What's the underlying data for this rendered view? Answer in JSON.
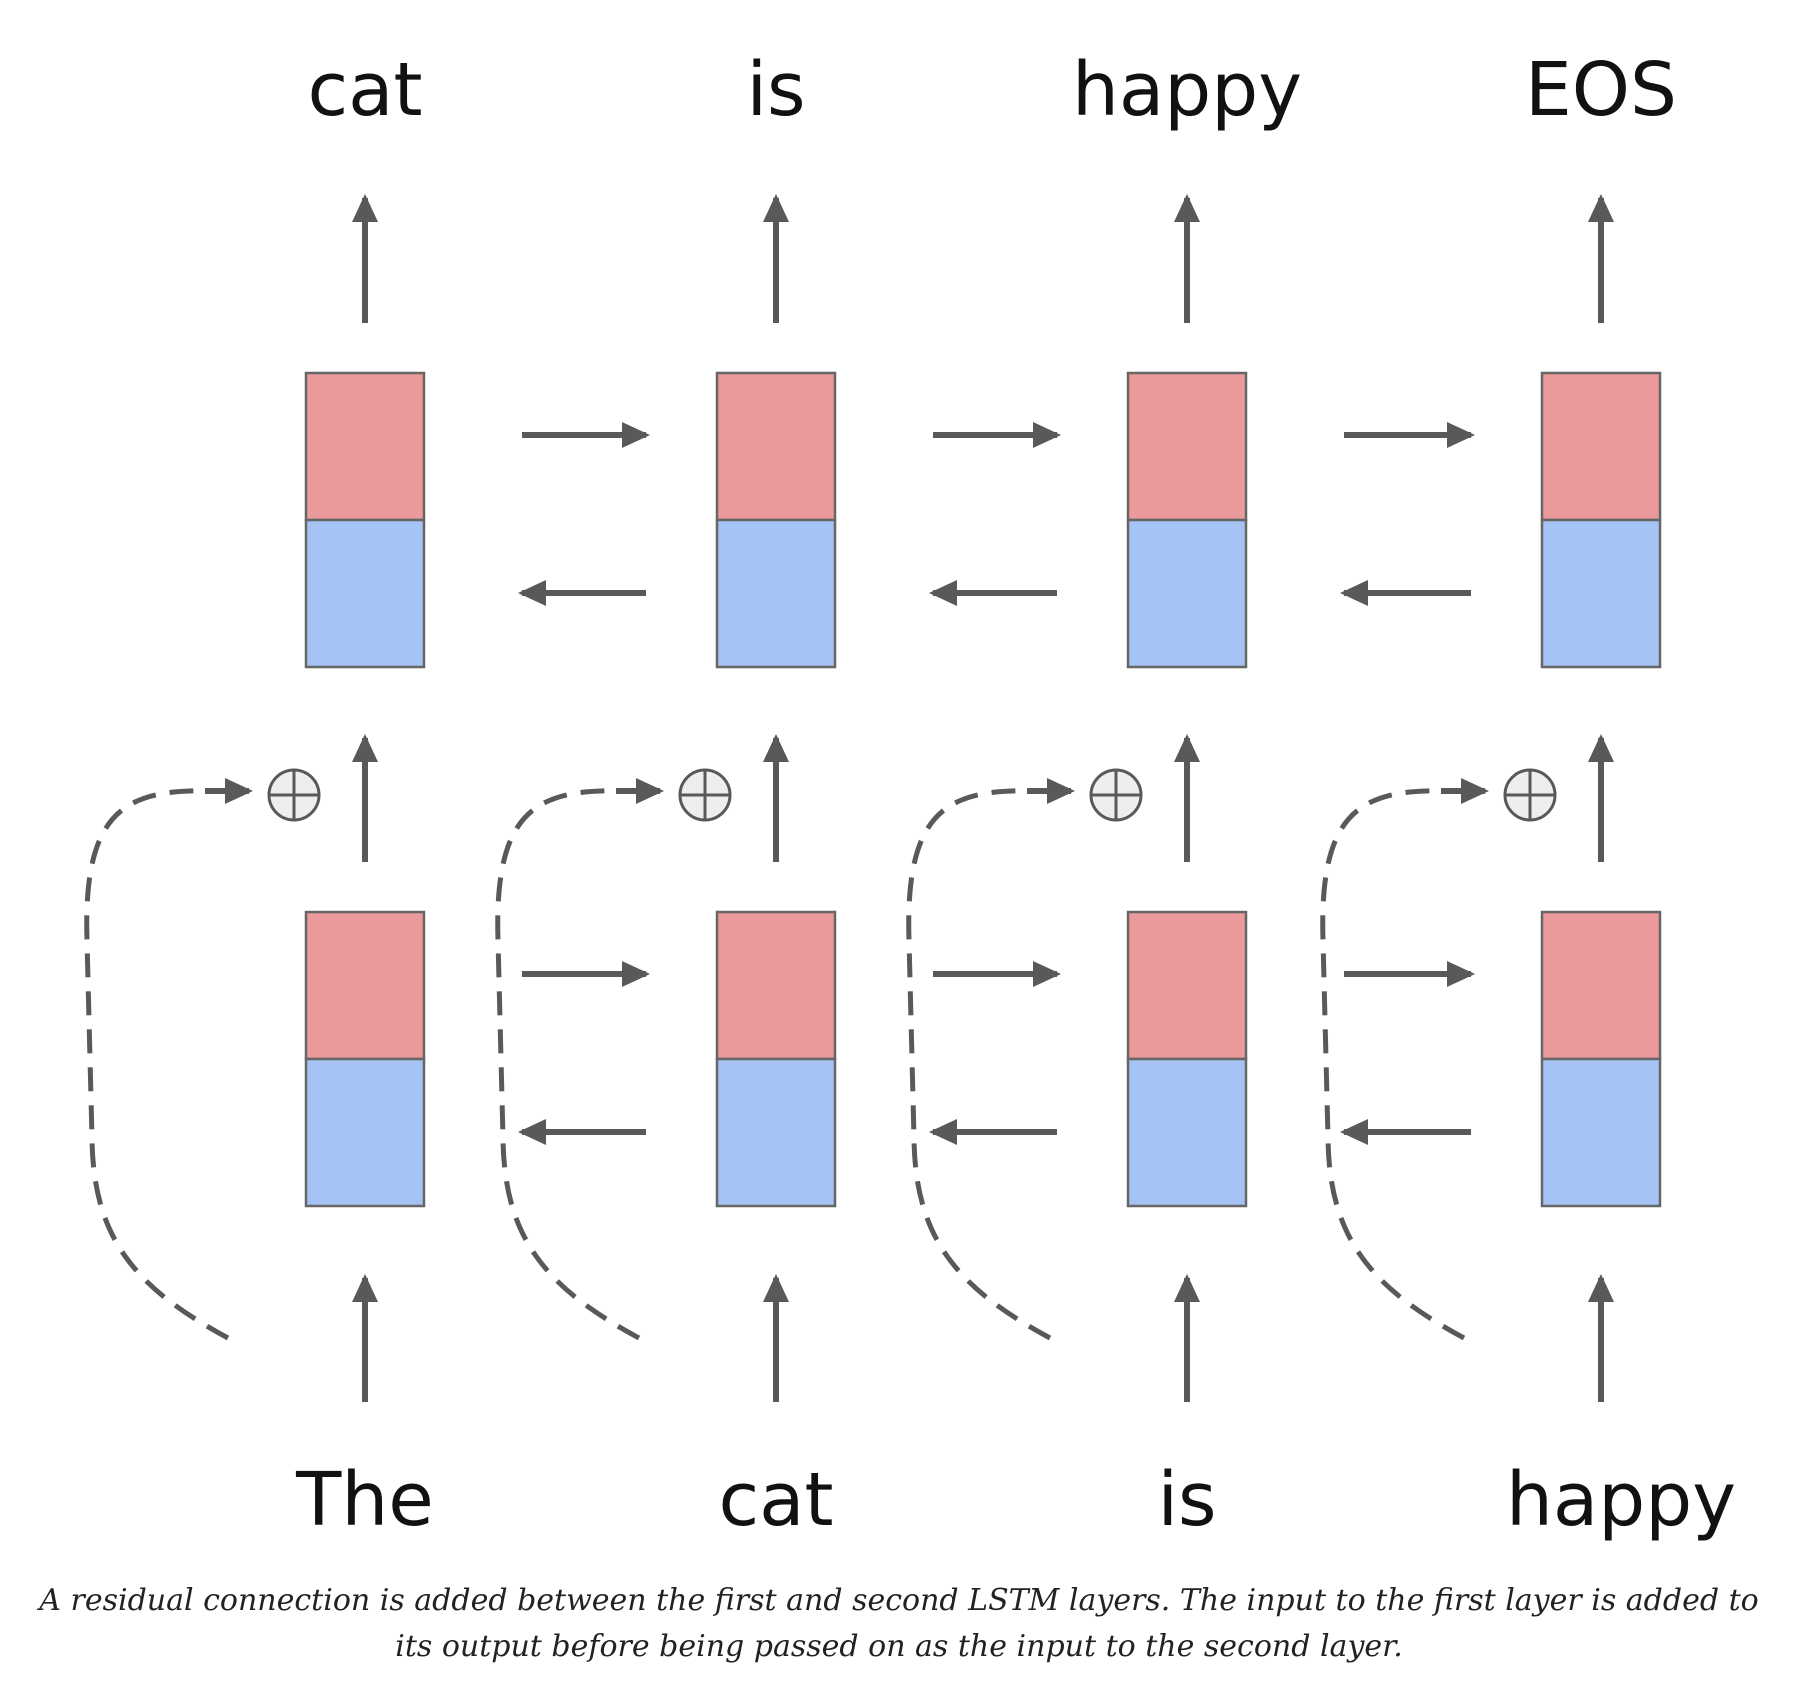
{
  "diagram": {
    "output_words": [
      "cat",
      "is",
      "happy",
      "EOS"
    ],
    "input_words": [
      "The",
      "cat",
      "is",
      "happy"
    ],
    "colors": {
      "forward_half": "#ea9a9a",
      "backward_half": "#a4c2f4",
      "box_border": "#666666",
      "arrow": "#595959",
      "add_symbol_fill": "#eeeeee"
    },
    "layers": [
      {
        "id": "layer-1"
      },
      {
        "id": "layer-2"
      }
    ],
    "residual_symbol": "⊕"
  },
  "caption": "A residual connection is added between the first and second LSTM layers. The input to the first layer is added to its output before being passed on as the input to the second layer."
}
